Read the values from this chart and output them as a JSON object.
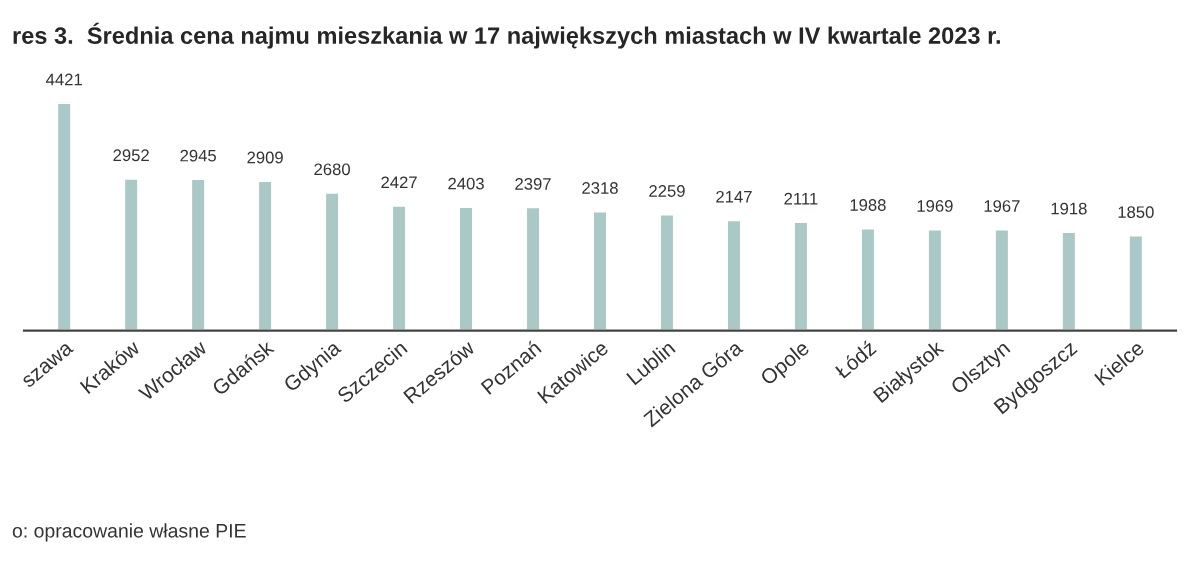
{
  "chart_data": {
    "type": "bar",
    "title": "res 3.  Średnia cena najmu mieszkania w 17 największych miastach w IV kwartale 2023 r.",
    "categories": [
      "szawa",
      "Kraków",
      "Wrocław",
      "Gdańsk",
      "Gdynia",
      "Szczecin",
      "Rzeszów",
      "Poznań",
      "Katowice",
      "Lublin",
      "Zielona Góra",
      "Opole",
      "Łódź",
      "Białystok",
      "Olsztyn",
      "Bydgoszcz",
      "Kielce"
    ],
    "values": [
      4421,
      2952,
      2945,
      2909,
      2680,
      2427,
      2403,
      2397,
      2318,
      2259,
      2147,
      2111,
      1988,
      1969,
      1967,
      1918,
      1850
    ],
    "color": "#a9c8c6",
    "ylim": [
      0,
      4421
    ],
    "data_labels": true,
    "tick_labels": "x",
    "grid": false,
    "annotations": [
      "o: opracowanie własne PIE"
    ]
  }
}
